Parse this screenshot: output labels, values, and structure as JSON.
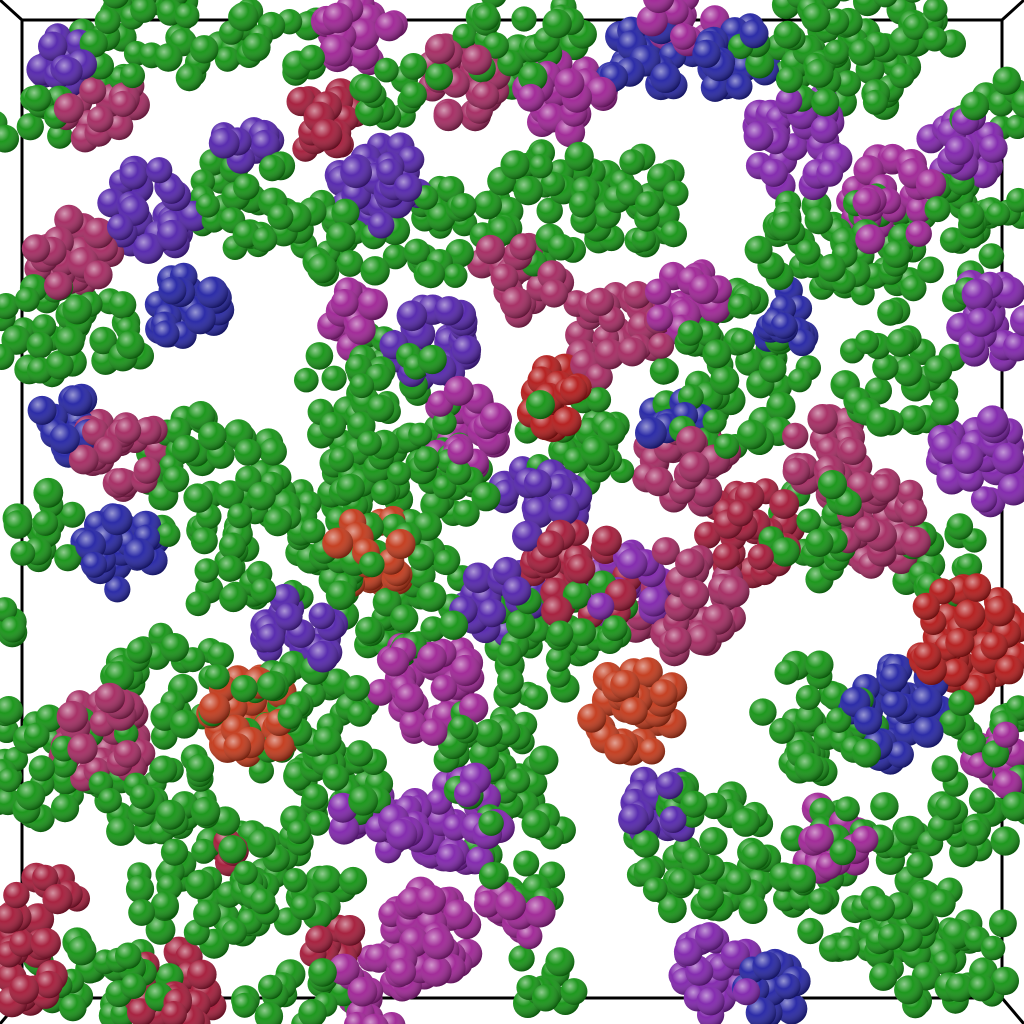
{
  "scene": {
    "background": "#ffffff",
    "box_outline_color": "#000000",
    "particle_colors": {
      "green": "#0a8f0a",
      "blue": "#1a1aa0",
      "indigo": "#4b1aa8",
      "purple": "#7a1aa8",
      "magenta": "#9a1a90",
      "rose": "#a0205a",
      "crimson": "#a01030",
      "red": "#b01010",
      "orange_red": "#c03010"
    }
  }
}
